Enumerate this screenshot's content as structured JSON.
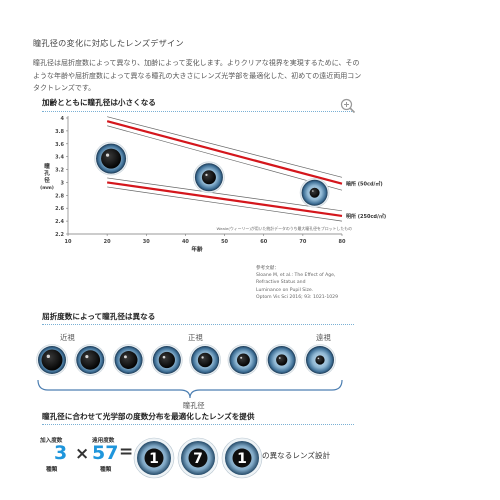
{
  "page": {
    "title": "瞳孔径の変化に対応したレンズデザイン",
    "intro": "瞳孔径は屈折度数によって異なり、加齢によって変化します。よりクリアな視界を実現するために、そのような年齢や屈折度数によって異なる瞳孔の大きさにレンズ光学部を最適化した、初めての遠近両用コンタクトレンズです。"
  },
  "section1": {
    "heading": "加齢とともに瞳孔径は小さくなる",
    "zoom_icon": "zoom-in-icon"
  },
  "chart_data": {
    "type": "line",
    "ylabel_lines": [
      "瞳",
      "孔",
      "径",
      "(mm)"
    ],
    "xlabel": "年齢",
    "x_ticks": [
      10,
      20,
      30,
      40,
      50,
      60,
      70,
      80
    ],
    "y_ticks": [
      2.2,
      2.4,
      2.6,
      2.8,
      3,
      3.2,
      3.4,
      3.6,
      3.8,
      4
    ],
    "xlim": [
      10,
      80
    ],
    "ylim": [
      2.2,
      4
    ],
    "series": [
      {
        "name": "暗所 (50cd/㎡)",
        "x": [
          20,
          80
        ],
        "y": [
          3.95,
          2.98
        ],
        "color": "#d4161c"
      },
      {
        "name": "明所 (250cd/㎡)",
        "x": [
          20,
          80
        ],
        "y": [
          3.0,
          2.48
        ],
        "color": "#d4161c"
      }
    ],
    "bands": [
      {
        "x": [
          20,
          80
        ],
        "upper": [
          4.02,
          3.08
        ],
        "lower": [
          3.88,
          2.88
        ]
      },
      {
        "x": [
          20,
          80
        ],
        "upper": [
          3.07,
          2.56
        ],
        "lower": [
          2.93,
          2.4
        ]
      }
    ],
    "eyes": [
      {
        "age": 21,
        "value": 3.37
      },
      {
        "age": 46,
        "value": 3.08
      },
      {
        "age": 73,
        "value": 2.84
      }
    ],
    "footnote": "Weale(ウィーリー)が用いた統計データのうち最大瞳孔径をプロットしたもの",
    "reference_lines": [
      "参考文献：",
      "Sloane M, et al.: The Effect of Age,",
      "Refractive Status and",
      "Luminance on Pupil Size.",
      "Optom Vis Sci 2016; 93: 1021-1029"
    ]
  },
  "section2": {
    "heading": "屈折度数によって瞳孔径は異なる",
    "labels": [
      "近視",
      "正視",
      "遠視"
    ],
    "axis_label": "瞳孔径",
    "pupils": [
      0.75,
      0.7,
      0.64,
      0.58,
      0.52,
      0.46,
      0.4,
      0.33
    ]
  },
  "section3": {
    "heading": "瞳孔径に合わせて光学部の度数分布を最適化したレンズを提供",
    "cap1_top": "加入度数",
    "num1": "3",
    "cap1_bottom": "種類",
    "times": "×",
    "cap2_top": "遠用度数",
    "num2": "57",
    "cap2_bottom": "種類",
    "equals": "=",
    "lens_digits": [
      "1",
      "7",
      "1"
    ],
    "result": "の異なるレンズ設計"
  }
}
